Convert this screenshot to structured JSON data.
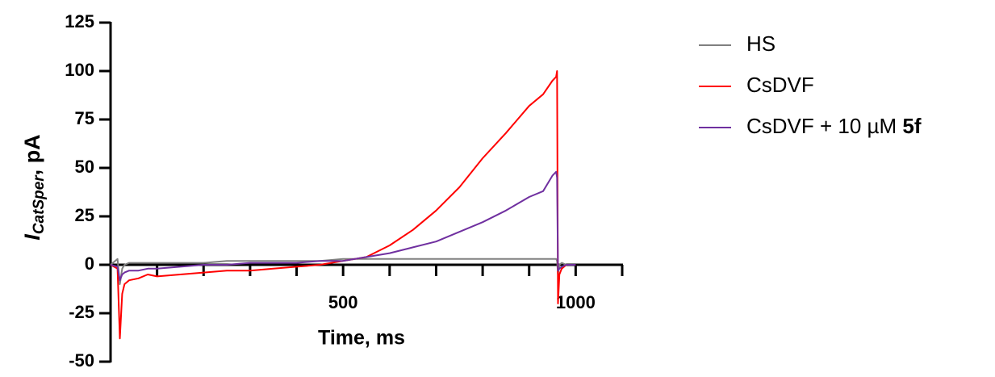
{
  "chart_data": {
    "type": "line",
    "xlabel": "Time, ms",
    "ylabel": {
      "main": "I",
      "sub": "CatSper",
      "rest": ", pA"
    },
    "x": [
      0,
      15,
      20,
      25,
      30,
      40,
      60,
      80,
      100,
      150,
      200,
      250,
      300,
      350,
      400,
      450,
      500,
      550,
      600,
      650,
      700,
      750,
      800,
      850,
      900,
      930,
      950,
      958,
      960,
      962,
      965,
      970,
      980,
      1000
    ],
    "series": [
      {
        "name": "HS",
        "color": "#808080",
        "values": [
          0,
          3,
          -10,
          -2,
          0,
          1,
          1,
          1,
          1,
          1,
          1,
          2,
          2,
          2,
          2,
          2,
          3,
          3,
          3,
          3,
          3,
          3,
          3,
          3,
          3,
          3,
          3,
          3,
          2,
          -5,
          0,
          1,
          0,
          0
        ]
      },
      {
        "name": "CsDVF",
        "color": "#ff0000",
        "values": [
          0,
          -2,
          -38,
          -15,
          -10,
          -8,
          -7,
          -5,
          -6,
          -5,
          -4,
          -3,
          -3,
          -2,
          -1,
          0,
          2,
          4,
          10,
          18,
          28,
          40,
          55,
          68,
          82,
          88,
          95,
          97,
          100,
          -20,
          -5,
          -2,
          0,
          0
        ]
      },
      {
        "name": "CsDVF + 10 µM 5f",
        "color": "#7030a0",
        "values": [
          0,
          -1,
          -8,
          -5,
          -4,
          -3,
          -3,
          -2,
          -2,
          -1,
          0,
          0,
          1,
          1,
          1,
          2,
          2,
          4,
          6,
          9,
          12,
          17,
          22,
          28,
          35,
          38,
          46,
          48,
          45,
          -3,
          -2,
          -1,
          0,
          0
        ]
      }
    ],
    "xlim": [
      0,
      1100
    ],
    "xticks": [
      500,
      1000
    ],
    "xminorticks": [
      100,
      200,
      300,
      400,
      600,
      700,
      800,
      900,
      1100
    ],
    "ylim": [
      -50,
      125
    ],
    "yticks": [
      -50,
      -25,
      0,
      25,
      50,
      75,
      100,
      125
    ]
  }
}
